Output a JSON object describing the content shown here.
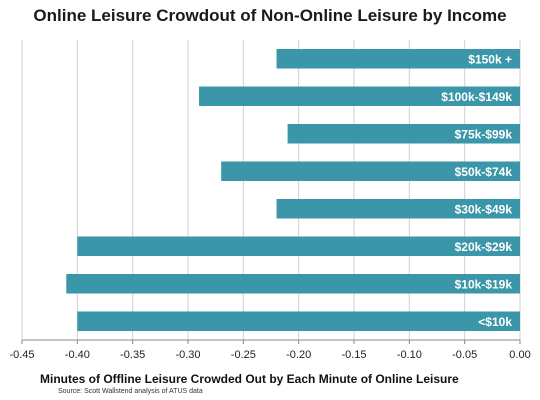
{
  "chart_data": {
    "type": "bar",
    "orientation": "horizontal",
    "title": "Online Leisure Crowdout of Non-Online Leisure by Income",
    "xlabel": "Minutes of Offline Leisure Crowded Out by Each Minute of Online Leisure",
    "ylabel": "",
    "source": "Source: Scott Wallstend analysis of ATUS data",
    "categories": [
      "$150k +",
      "$100k-$149k",
      "$75k-$99k",
      "$50k-$74k",
      "$30k-$49k",
      "$20k-$29k",
      "$10k-$19k",
      "<$10k"
    ],
    "values": [
      -0.22,
      -0.29,
      -0.21,
      -0.27,
      -0.22,
      -0.4,
      -0.41,
      -0.4
    ],
    "xlim": [
      -0.45,
      0.0
    ],
    "xticks": [
      -0.45,
      -0.4,
      -0.35,
      -0.3,
      -0.25,
      -0.2,
      -0.15,
      -0.1,
      -0.05,
      0.0
    ],
    "xtick_labels": [
      "-0.45",
      "-0.40",
      "-0.35",
      "-0.30",
      "-0.25",
      "-0.20",
      "-0.15",
      "-0.10",
      "-0.05",
      "0.00"
    ],
    "grid": "vertical",
    "bar_color": "#3a96a8",
    "label_color": "#ffffff",
    "grid_color": "#cfcfcf"
  }
}
